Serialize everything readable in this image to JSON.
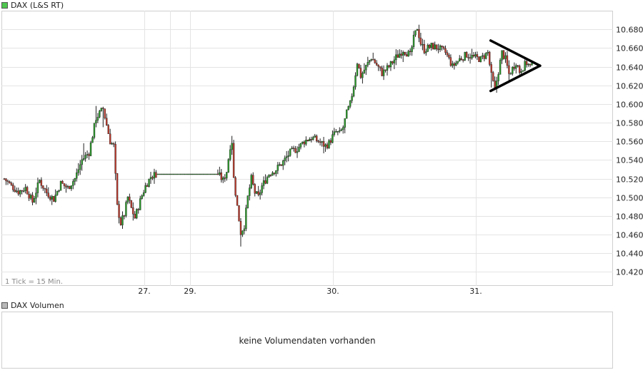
{
  "main_legend": {
    "label": "DAX (L&S RT)",
    "color": "#4fc64f"
  },
  "volume_legend": {
    "label": "DAX Volumen",
    "color": "#b8b8b8"
  },
  "tick_note": "1 Tick = 15 Min.",
  "volume_message": "keine Volumendaten vorhanden",
  "colors": {
    "up": "#2a9d2a",
    "down": "#c0392b",
    "wick": "#222222",
    "grid": "#e4e4e4",
    "pattern": "#000000"
  },
  "chart_data": {
    "type": "candlestick",
    "title": "",
    "xlabel": "",
    "ylabel": "",
    "ylim": [
      10405,
      10700
    ],
    "ytick_values": [
      10420,
      10440,
      10460,
      10480,
      10500,
      10520,
      10540,
      10560,
      10580,
      10600,
      10620,
      10640,
      10660,
      10680
    ],
    "ytick_labels": [
      "10.420",
      "10.440",
      "10.460",
      "10.480",
      "10.500",
      "10.520",
      "10.540",
      "10.560",
      "10.580",
      "10.600",
      "10.620",
      "10.640",
      "10.660",
      "10.680"
    ],
    "x_labels": [
      "27.",
      "29.",
      "30.",
      "31."
    ],
    "interval": "15 min",
    "price_path": [
      [
        0,
        10520
      ],
      [
        4,
        10512
      ],
      [
        8,
        10506
      ],
      [
        12,
        10510
      ],
      [
        16,
        10495
      ],
      [
        20,
        10518
      ],
      [
        24,
        10505
      ],
      [
        28,
        10498
      ],
      [
        32,
        10515
      ],
      [
        36,
        10510
      ],
      [
        40,
        10520
      ],
      [
        44,
        10540
      ],
      [
        48,
        10548
      ],
      [
        52,
        10585
      ],
      [
        56,
        10595
      ],
      [
        60,
        10560
      ],
      [
        62,
        10555
      ],
      [
        64,
        10490
      ],
      [
        66,
        10472
      ],
      [
        68,
        10482
      ],
      [
        70,
        10500
      ],
      [
        72,
        10488
      ],
      [
        74,
        10478
      ],
      [
        76,
        10490
      ],
      [
        78,
        10502
      ],
      [
        80,
        10512
      ],
      [
        83,
        10522
      ],
      [
        86,
        10525
      ],
      [
        98,
        10525
      ],
      [
        121,
        10525
      ],
      [
        124,
        10518
      ],
      [
        126,
        10528
      ],
      [
        128,
        10555
      ],
      [
        129,
        10560
      ],
      [
        130,
        10520
      ],
      [
        132,
        10490
      ],
      [
        134,
        10462
      ],
      [
        136,
        10470
      ],
      [
        138,
        10500
      ],
      [
        140,
        10520
      ],
      [
        142,
        10505
      ],
      [
        144,
        10500
      ],
      [
        146,
        10512
      ],
      [
        150,
        10525
      ],
      [
        154,
        10530
      ],
      [
        158,
        10538
      ],
      [
        162,
        10548
      ],
      [
        166,
        10552
      ],
      [
        170,
        10560
      ],
      [
        174,
        10564
      ],
      [
        178,
        10560
      ],
      [
        182,
        10555
      ],
      [
        184,
        10558
      ],
      [
        186,
        10565
      ],
      [
        188,
        10570
      ],
      [
        190,
        10568
      ],
      [
        192,
        10575
      ],
      [
        194,
        10590
      ],
      [
        196,
        10600
      ],
      [
        198,
        10620
      ],
      [
        200,
        10645
      ],
      [
        202,
        10630
      ],
      [
        205,
        10640
      ],
      [
        208,
        10650
      ],
      [
        211,
        10642
      ],
      [
        214,
        10633
      ],
      [
        218,
        10640
      ],
      [
        222,
        10650
      ],
      [
        226,
        10658
      ],
      [
        230,
        10652
      ],
      [
        232,
        10670
      ],
      [
        234,
        10682
      ],
      [
        236,
        10665
      ],
      [
        238,
        10658
      ],
      [
        242,
        10662
      ],
      [
        246,
        10660
      ],
      [
        250,
        10655
      ],
      [
        252,
        10648
      ],
      [
        254,
        10640
      ],
      [
        258,
        10648
      ],
      [
        262,
        10653
      ],
      [
        266,
        10650
      ],
      [
        270,
        10648
      ],
      [
        274,
        10655
      ],
      [
        276,
        10630
      ],
      [
        278,
        10615
      ],
      [
        280,
        10635
      ],
      [
        282,
        10655
      ],
      [
        284,
        10648
      ],
      [
        286,
        10632
      ],
      [
        288,
        10638
      ],
      [
        290,
        10645
      ],
      [
        292,
        10635
      ],
      [
        294,
        10640
      ],
      [
        296,
        10644
      ],
      [
        298,
        10640
      ]
    ],
    "highlight_low_index": 276,
    "annotation": {
      "type": "triangle",
      "x_start_index": 276,
      "x_end_index": 304,
      "upper_start": 10668,
      "lower_start": 10614,
      "apex": 10641
    }
  }
}
